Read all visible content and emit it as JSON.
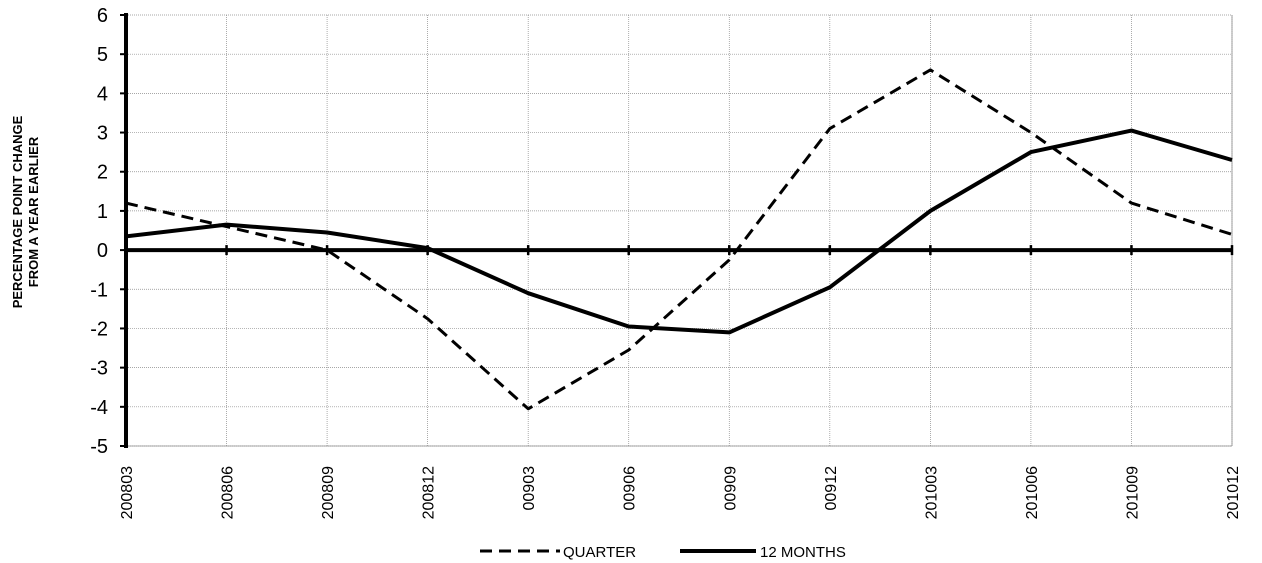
{
  "chart_data": {
    "type": "line",
    "categories": [
      "200803",
      "200806",
      "200809",
      "200812",
      "00903",
      "00906",
      "00909",
      "00912",
      "201003",
      "201006",
      "201009",
      "201012"
    ],
    "series": [
      {
        "name": "QUARTER",
        "line_style": "dashed",
        "color": "#000000",
        "values": [
          1.2,
          0.6,
          0.0,
          -1.75,
          -4.05,
          -2.55,
          -0.25,
          3.1,
          4.6,
          3.0,
          1.2,
          0.4
        ]
      },
      {
        "name": "12 MONTHS",
        "line_style": "solid",
        "color": "#000000",
        "values": [
          0.35,
          0.65,
          0.45,
          0.05,
          -1.1,
          -1.95,
          -2.1,
          -0.95,
          1.0,
          2.5,
          3.05,
          2.3
        ]
      }
    ],
    "ylabel_lines": [
      "PERCENTAGE POINT CHANGE",
      "FROM A YEAR EARLIER"
    ],
    "ylim": [
      -5,
      6
    ],
    "yticks": [
      "6",
      "5",
      "4",
      "3",
      "2",
      "1",
      "0",
      "-1",
      "-2",
      "-3",
      "-4",
      "-5"
    ],
    "grid": true,
    "legend_position": "bottom-center"
  }
}
